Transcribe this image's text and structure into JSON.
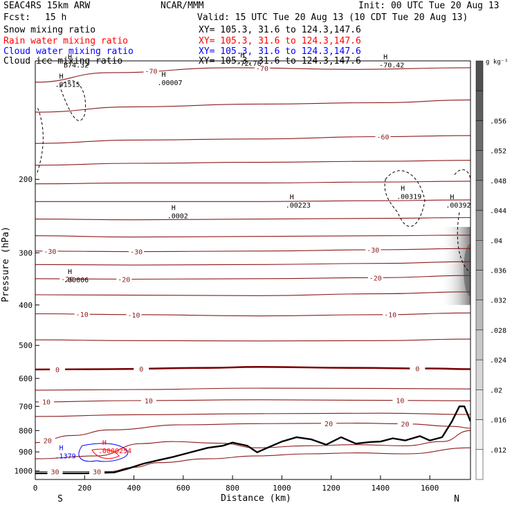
{
  "header": {
    "model": "SEAC4RS 15km ARW",
    "center": "NCAR/MMM",
    "init": "Init: 00 UTC Tue 20 Aug 13",
    "fcst_label": "Fcst:",
    "fcst_value": "15 h",
    "valid": "Valid: 15 UTC Tue 20 Aug 13 (10 CDT Tue 20 Aug 13)"
  },
  "fields": [
    {
      "name": "Snow mixing ratio",
      "xy": "XY= 105.3, 31.6 to 124.3,147.6",
      "color": "#000000"
    },
    {
      "name": "Rain water mixing ratio",
      "xy": "XY= 105.3, 31.6 to 124.3,147.6",
      "color": "#ff0000"
    },
    {
      "name": "Cloud water mixing ratio",
      "xy": "XY= 105.3, 31.6 to 124.3,147.6",
      "color": "#0000ff"
    },
    {
      "name": "Cloud ice mixing ratio",
      "xy": "XY= 105.3, 31.6 to 124.3,147.6",
      "color": "#000000"
    }
  ],
  "colorbar": {
    "unit": "g kg⁻¹",
    "ticks": [
      "",
      ".056",
      ".052",
      ".048",
      ".044",
      ".04",
      ".036",
      ".032",
      ".028",
      ".024",
      ".02",
      ".016",
      ".012",
      ""
    ]
  },
  "colors": {
    "isotherm": "#8b1a1a",
    "zero_isotherm": "#7a0000",
    "terrain": "#000000"
  },
  "chart_data": {
    "type": "cross-section contour",
    "xlabel": "Distance (km)",
    "ylabel": "Pressure (hPa)",
    "x_ticks": [
      0,
      200,
      400,
      600,
      800,
      1000,
      1200,
      1400,
      1600
    ],
    "y_ticks": [
      200,
      300,
      400,
      500,
      600,
      700,
      800,
      900,
      1000
    ],
    "xlim": [
      0,
      1765
    ],
    "ylim": [
      1048,
      104
    ],
    "y_scale": "log",
    "endpoint_labels": {
      "left": "S",
      "right": "N"
    },
    "isotherms": [
      {
        "t": -70,
        "p": [
          [
            0,
            117
          ],
          [
            300,
            111
          ],
          [
            800,
            108
          ],
          [
            1300,
            109
          ],
          [
            1765,
            108
          ]
        ],
        "labels": [
          {
            "x": 470,
            "text": "-70"
          },
          {
            "x": 920,
            "text": "-70"
          }
        ]
      },
      {
        "t": -65,
        "p": [
          [
            0,
            138
          ],
          [
            400,
            134
          ],
          [
            900,
            132
          ],
          [
            1400,
            131
          ],
          [
            1765,
            129
          ]
        ],
        "labels": []
      },
      {
        "t": -60,
        "p": [
          [
            0,
            164
          ],
          [
            400,
            161
          ],
          [
            900,
            160
          ],
          [
            1400,
            158
          ],
          [
            1765,
            157
          ]
        ],
        "labels": [
          {
            "x": 1410,
            "text": "-60"
          }
        ]
      },
      {
        "t": -55,
        "p": [
          [
            0,
            185
          ],
          [
            400,
            183
          ],
          [
            900,
            182
          ],
          [
            1400,
            181
          ],
          [
            1765,
            180
          ]
        ],
        "labels": []
      },
      {
        "t": -50,
        "p": [
          [
            0,
            205
          ],
          [
            400,
            204
          ],
          [
            900,
            204
          ],
          [
            1400,
            203
          ],
          [
            1765,
            202
          ]
        ],
        "labels": []
      },
      {
        "t": -45,
        "p": [
          [
            0,
            226
          ],
          [
            400,
            226
          ],
          [
            900,
            226
          ],
          [
            1400,
            225
          ],
          [
            1765,
            224
          ]
        ],
        "labels": []
      },
      {
        "t": -40,
        "p": [
          [
            0,
            249
          ],
          [
            400,
            250
          ],
          [
            900,
            249
          ],
          [
            1400,
            248
          ],
          [
            1765,
            247
          ]
        ],
        "labels": []
      },
      {
        "t": -35,
        "p": [
          [
            0,
            273
          ],
          [
            400,
            275
          ],
          [
            900,
            274
          ],
          [
            1400,
            273
          ],
          [
            1765,
            272
          ]
        ],
        "labels": []
      },
      {
        "t": -30,
        "p": [
          [
            0,
            297
          ],
          [
            400,
            298
          ],
          [
            900,
            297
          ],
          [
            1400,
            295
          ],
          [
            1765,
            293
          ]
        ],
        "labels": [
          {
            "x": 60,
            "text": "-30"
          },
          {
            "x": 410,
            "text": "-30"
          },
          {
            "x": 1370,
            "text": "-30"
          }
        ]
      },
      {
        "t": -25,
        "p": [
          [
            0,
            320
          ],
          [
            400,
            321
          ],
          [
            900,
            320
          ],
          [
            1400,
            318
          ],
          [
            1765,
            315
          ]
        ],
        "labels": []
      },
      {
        "t": -20,
        "p": [
          [
            0,
            346
          ],
          [
            400,
            347
          ],
          [
            900,
            346
          ],
          [
            1400,
            344
          ],
          [
            1765,
            340
          ]
        ],
        "labels": [
          {
            "x": 130,
            "text": "-20"
          },
          {
            "x": 360,
            "text": "-20"
          },
          {
            "x": 1380,
            "text": "-20"
          }
        ]
      },
      {
        "t": -15,
        "p": [
          [
            0,
            378
          ],
          [
            400,
            379
          ],
          [
            900,
            380
          ],
          [
            1400,
            376
          ],
          [
            1765,
            372
          ]
        ],
        "labels": []
      },
      {
        "t": -10,
        "p": [
          [
            0,
            420
          ],
          [
            400,
            422
          ],
          [
            900,
            425
          ],
          [
            1400,
            422
          ],
          [
            1765,
            418
          ]
        ],
        "labels": [
          {
            "x": 190,
            "text": "-10"
          },
          {
            "x": 400,
            "text": "-10"
          },
          {
            "x": 1440,
            "text": "-10"
          }
        ]
      },
      {
        "t": -5,
        "p": [
          [
            0,
            485
          ],
          [
            400,
            487
          ],
          [
            900,
            488
          ],
          [
            1400,
            487
          ],
          [
            1765,
            483
          ]
        ],
        "labels": []
      },
      {
        "t": 0,
        "p": [
          [
            0,
            571
          ],
          [
            300,
            570
          ],
          [
            700,
            566
          ],
          [
            900,
            563
          ],
          [
            1300,
            566
          ],
          [
            1600,
            568
          ],
          [
            1765,
            570
          ]
        ],
        "labels": [
          {
            "x": 90,
            "text": "0"
          },
          {
            "x": 430,
            "text": "0"
          },
          [
            1550,
            "0"
          ]
        ]
      },
      {
        "t": 5,
        "p": [
          [
            0,
            640
          ],
          [
            400,
            638
          ],
          [
            900,
            633
          ],
          [
            1400,
            634
          ],
          [
            1765,
            636
          ]
        ],
        "labels": []
      },
      {
        "t": 10,
        "p": [
          [
            0,
            683
          ],
          [
            400,
            678
          ],
          [
            900,
            675
          ],
          [
            1400,
            677
          ],
          [
            1765,
            679
          ]
        ],
        "labels": [
          {
            "x": 45,
            "text": "10"
          },
          {
            "x": 460,
            "text": "10"
          },
          {
            "x": 1480,
            "text": "10"
          }
        ]
      },
      {
        "t": 15,
        "p": [
          [
            0,
            740
          ],
          [
            400,
            733
          ],
          [
            900,
            729
          ],
          [
            1400,
            727
          ],
          [
            1765,
            732
          ]
        ],
        "labels": []
      },
      {
        "t": 20,
        "p": [
          [
            0,
            855
          ],
          [
            150,
            822
          ],
          [
            300,
            797
          ],
          [
            600,
            775
          ],
          [
            900,
            770
          ],
          [
            1300,
            768
          ],
          [
            1500,
            771
          ],
          [
            1700,
            782
          ],
          [
            1765,
            790
          ]
        ],
        "labels": [
          {
            "x": 50,
            "text": "20"
          },
          {
            "x": 1190,
            "text": "20"
          },
          {
            "x": 1500,
            "text": "20"
          }
        ]
      },
      {
        "t": 25,
        "p": [
          [
            0,
            935
          ],
          [
            250,
            920
          ],
          [
            430,
            860
          ],
          [
            550,
            850
          ],
          [
            750,
            858
          ],
          [
            900,
            880
          ],
          [
            1100,
            870
          ],
          [
            1300,
            865
          ],
          [
            1500,
            870
          ],
          [
            1650,
            850
          ],
          [
            1765,
            800
          ]
        ],
        "labels": []
      },
      {
        "t": 30,
        "p": [
          [
            0,
            1003
          ],
          [
            300,
            1003
          ],
          [
            400,
            980
          ],
          [
            500,
            955
          ],
          [
            700,
            935
          ],
          [
            900,
            920
          ],
          [
            1100,
            910
          ],
          [
            1300,
            905
          ],
          [
            1500,
            910
          ],
          [
            1765,
            880
          ]
        ],
        "labels": [
          {
            "x": 80,
            "text": "30"
          },
          {
            "x": 250,
            "text": "30"
          }
        ]
      }
    ],
    "terrain_hpa": [
      [
        0,
        1013
      ],
      [
        200,
        1013
      ],
      [
        320,
        1008
      ],
      [
        380,
        985
      ],
      [
        440,
        960
      ],
      [
        500,
        942
      ],
      [
        560,
        925
      ],
      [
        620,
        905
      ],
      [
        700,
        880
      ],
      [
        760,
        870
      ],
      [
        800,
        855
      ],
      [
        860,
        870
      ],
      [
        900,
        902
      ],
      [
        960,
        870
      ],
      [
        1000,
        850
      ],
      [
        1060,
        830
      ],
      [
        1120,
        840
      ],
      [
        1180,
        865
      ],
      [
        1240,
        830
      ],
      [
        1300,
        860
      ],
      [
        1360,
        852
      ],
      [
        1400,
        850
      ],
      [
        1450,
        835
      ],
      [
        1500,
        845
      ],
      [
        1560,
        825
      ],
      [
        1600,
        845
      ],
      [
        1650,
        830
      ],
      [
        1690,
        760
      ],
      [
        1720,
        700
      ],
      [
        1740,
        700
      ],
      [
        1765,
        760
      ]
    ],
    "cloud_water_label": {
      "text": ".1379",
      "x": 125,
      "p": 925
    },
    "rain_label": {
      "text": ".0000254",
      "x": 300,
      "p": 900
    },
    "ice_labels": [
      {
        "text": ".00007",
        "x": 540,
        "p": 118
      },
      {
        "text": ".0002",
        "x": 580,
        "p": 246
      },
      {
        "text": ".00223",
        "x": 1060,
        "p": 232
      },
      {
        "text": ".00319",
        "x": 1510,
        "p": 221
      },
      {
        "text": ".00392",
        "x": 1710,
        "p": 232
      },
      {
        "text": ".00006",
        "x": 160,
        "p": 350
      },
      {
        "text": ".01515",
        "x": 125,
        "p": 119
      },
      {
        "text": "-72.76",
        "x": 860,
        "p": 106
      },
      {
        "text": "-70.42",
        "x": 1440,
        "p": 107
      },
      {
        "text": "B74.32",
        "x": 160,
        "p": 107
      }
    ]
  }
}
